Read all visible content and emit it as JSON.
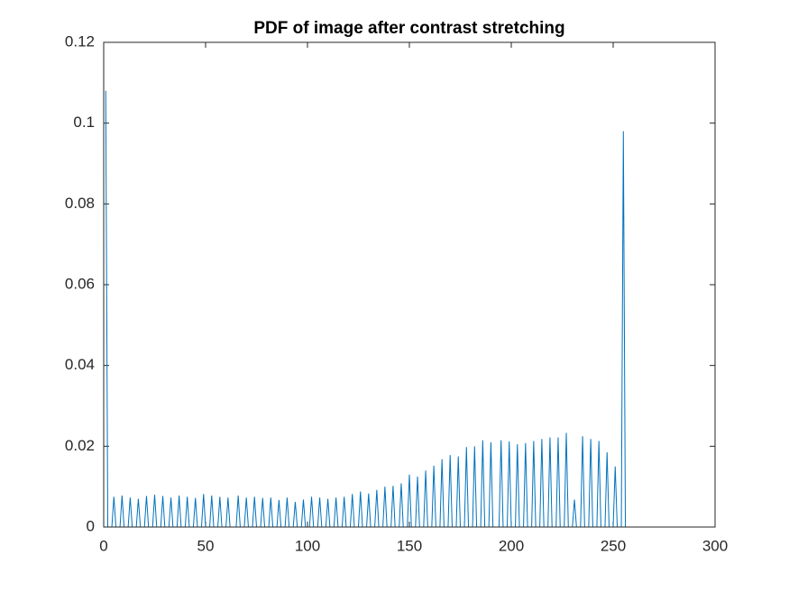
{
  "chart_data": {
    "type": "line",
    "title": "PDF of image after contrast stretching",
    "x": [
      1,
      2,
      4,
      5,
      6,
      8,
      9,
      10,
      12,
      13,
      14,
      16,
      17,
      18,
      20,
      21,
      22,
      24,
      25,
      26,
      28,
      29,
      30,
      32,
      33,
      34,
      36,
      37,
      38,
      40,
      41,
      42,
      44,
      45,
      46,
      48,
      49,
      50,
      52,
      53,
      54,
      56,
      57,
      58,
      60,
      61,
      62,
      65,
      66,
      67,
      69,
      70,
      71,
      73,
      74,
      75,
      77,
      78,
      79,
      81,
      82,
      83,
      85,
      86,
      87,
      89,
      90,
      91,
      93,
      94,
      95,
      97,
      98,
      99,
      101,
      102,
      103,
      105,
      106,
      107,
      109,
      110,
      111,
      113,
      114,
      115,
      117,
      118,
      119,
      121,
      122,
      123,
      125,
      126,
      127,
      129,
      130,
      131,
      133,
      134,
      135,
      137,
      138,
      139,
      141,
      142,
      143,
      145,
      146,
      147,
      149,
      150,
      151,
      153,
      154,
      155,
      157,
      158,
      159,
      161,
      162,
      163,
      165,
      166,
      167,
      169,
      170,
      171,
      173,
      174,
      175,
      177,
      178,
      179,
      181,
      182,
      183,
      185,
      186,
      187,
      189,
      190,
      191,
      194,
      195,
      196,
      198,
      199,
      200,
      202,
      203,
      204,
      206,
      207,
      208,
      210,
      211,
      212,
      214,
      215,
      216,
      218,
      219,
      220,
      222,
      223,
      224,
      226,
      227,
      228,
      230,
      231,
      232,
      234,
      235,
      236,
      238,
      239,
      240,
      242,
      243,
      244,
      246,
      247,
      248,
      250,
      251,
      252,
      254,
      255,
      256
    ],
    "series": [
      {
        "color": "#0072bd",
        "values": [
          0.108,
          0,
          0,
          0.0075,
          0,
          0,
          0.0078,
          0,
          0,
          0.0073,
          0,
          0,
          0.007,
          0,
          0,
          0.0077,
          0,
          0,
          0.008,
          0,
          0,
          0.0077,
          0,
          0,
          0.0073,
          0,
          0,
          0.0078,
          0,
          0,
          0.0075,
          0,
          0,
          0.0072,
          0,
          0,
          0.0082,
          0,
          0,
          0.0078,
          0,
          0,
          0.0075,
          0,
          0,
          0.0073,
          0,
          0,
          0.0078,
          0,
          0,
          0.0073,
          0,
          0,
          0.0075,
          0,
          0,
          0.0072,
          0,
          0,
          0.0073,
          0,
          0,
          0.0067,
          0,
          0,
          0.0073,
          0,
          0,
          0.0062,
          0,
          0,
          0.0068,
          0,
          0,
          0.0075,
          0,
          0,
          0.0073,
          0,
          0,
          0.007,
          0,
          0,
          0.0073,
          0,
          0,
          0.0075,
          0,
          0,
          0.0082,
          0,
          0,
          0.0088,
          0,
          0,
          0.0083,
          0,
          0,
          0.0092,
          0,
          0,
          0.01,
          0,
          0,
          0.0102,
          0,
          0,
          0.0108,
          0,
          0,
          0.013,
          0,
          0,
          0.0125,
          0,
          0,
          0.014,
          0,
          0,
          0.0152,
          0,
          0,
          0.0168,
          0,
          0,
          0.0178,
          0,
          0,
          0.0175,
          0,
          0,
          0.0198,
          0,
          0,
          0.02,
          0,
          0,
          0.0215,
          0,
          0,
          0.021,
          0,
          0,
          0.0215,
          0,
          0,
          0.0212,
          0,
          0,
          0.0205,
          0,
          0,
          0.0208,
          0,
          0,
          0.0213,
          0,
          0,
          0.0218,
          0,
          0,
          0.0222,
          0,
          0,
          0.0222,
          0,
          0,
          0.0233,
          0,
          0,
          0.0068,
          0,
          0,
          0.0225,
          0,
          0,
          0.0218,
          0,
          0,
          0.0213,
          0,
          0,
          0.0185,
          0,
          0,
          0.015,
          0,
          0,
          0.098,
          0
        ]
      }
    ],
    "xlim": [
      0,
      300
    ],
    "xticks": [
      0,
      50,
      100,
      150,
      200,
      250,
      300
    ],
    "ylim": [
      0,
      0.12
    ],
    "yticks": [
      0,
      0.02,
      0.04,
      0.06,
      0.08,
      0.1,
      0.12
    ]
  }
}
